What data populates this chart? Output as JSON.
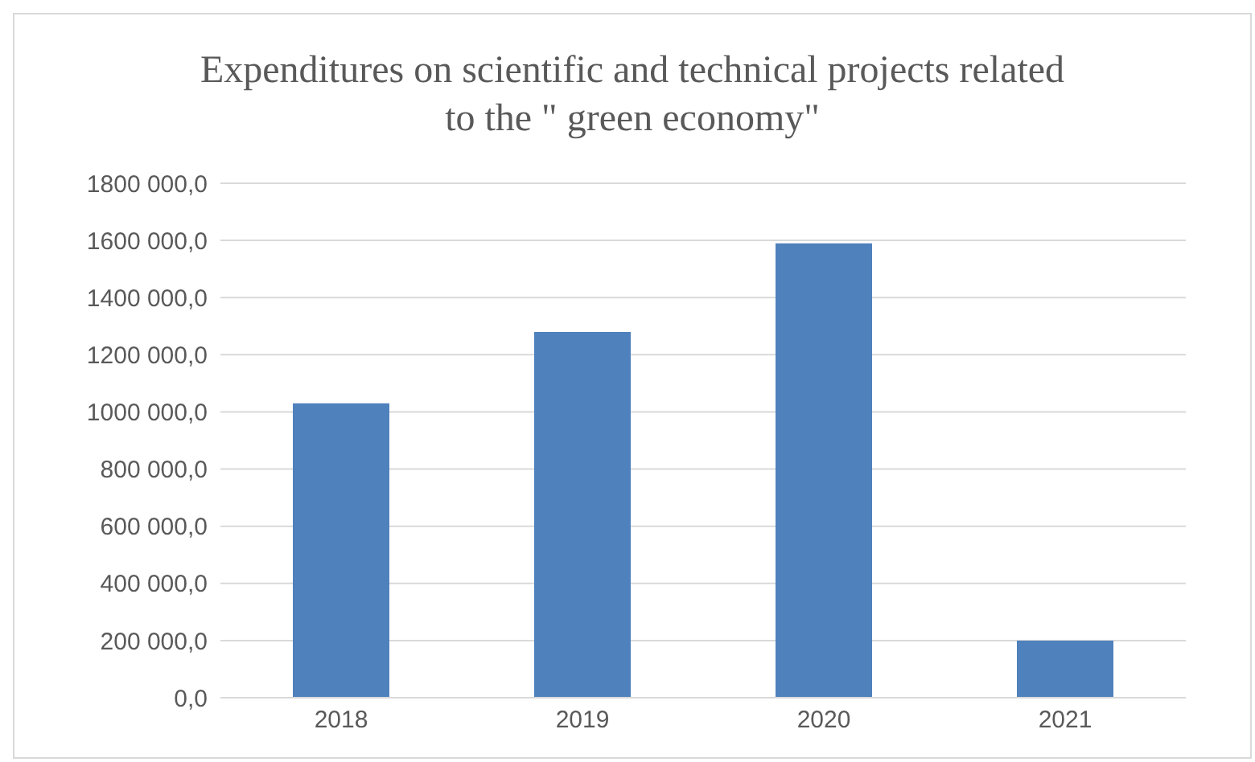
{
  "chart_data": {
    "type": "bar",
    "title": "Expenditures on scientific and technical projects related to the \" green economy\"",
    "categories": [
      "2018",
      "2019",
      "2020",
      "2021"
    ],
    "values": [
      1030000,
      1280000,
      1590000,
      200000
    ],
    "color": "#4f81bd",
    "ylim": [
      0,
      1800000
    ],
    "yticks": [
      {
        "value": 0,
        "label": "0,0"
      },
      {
        "value": 200000,
        "label": "200 000,0"
      },
      {
        "value": 400000,
        "label": "400 000,0"
      },
      {
        "value": 600000,
        "label": "600 000,0"
      },
      {
        "value": 800000,
        "label": "800 000,0"
      },
      {
        "value": 1000000,
        "label": "1000 000,0"
      },
      {
        "value": 1200000,
        "label": "1200 000,0"
      },
      {
        "value": 1400000,
        "label": "1400 000,0"
      },
      {
        "value": 1600000,
        "label": "1600 000,0"
      },
      {
        "value": 1800000,
        "label": "1800 000,0"
      }
    ],
    "grid": "y"
  }
}
